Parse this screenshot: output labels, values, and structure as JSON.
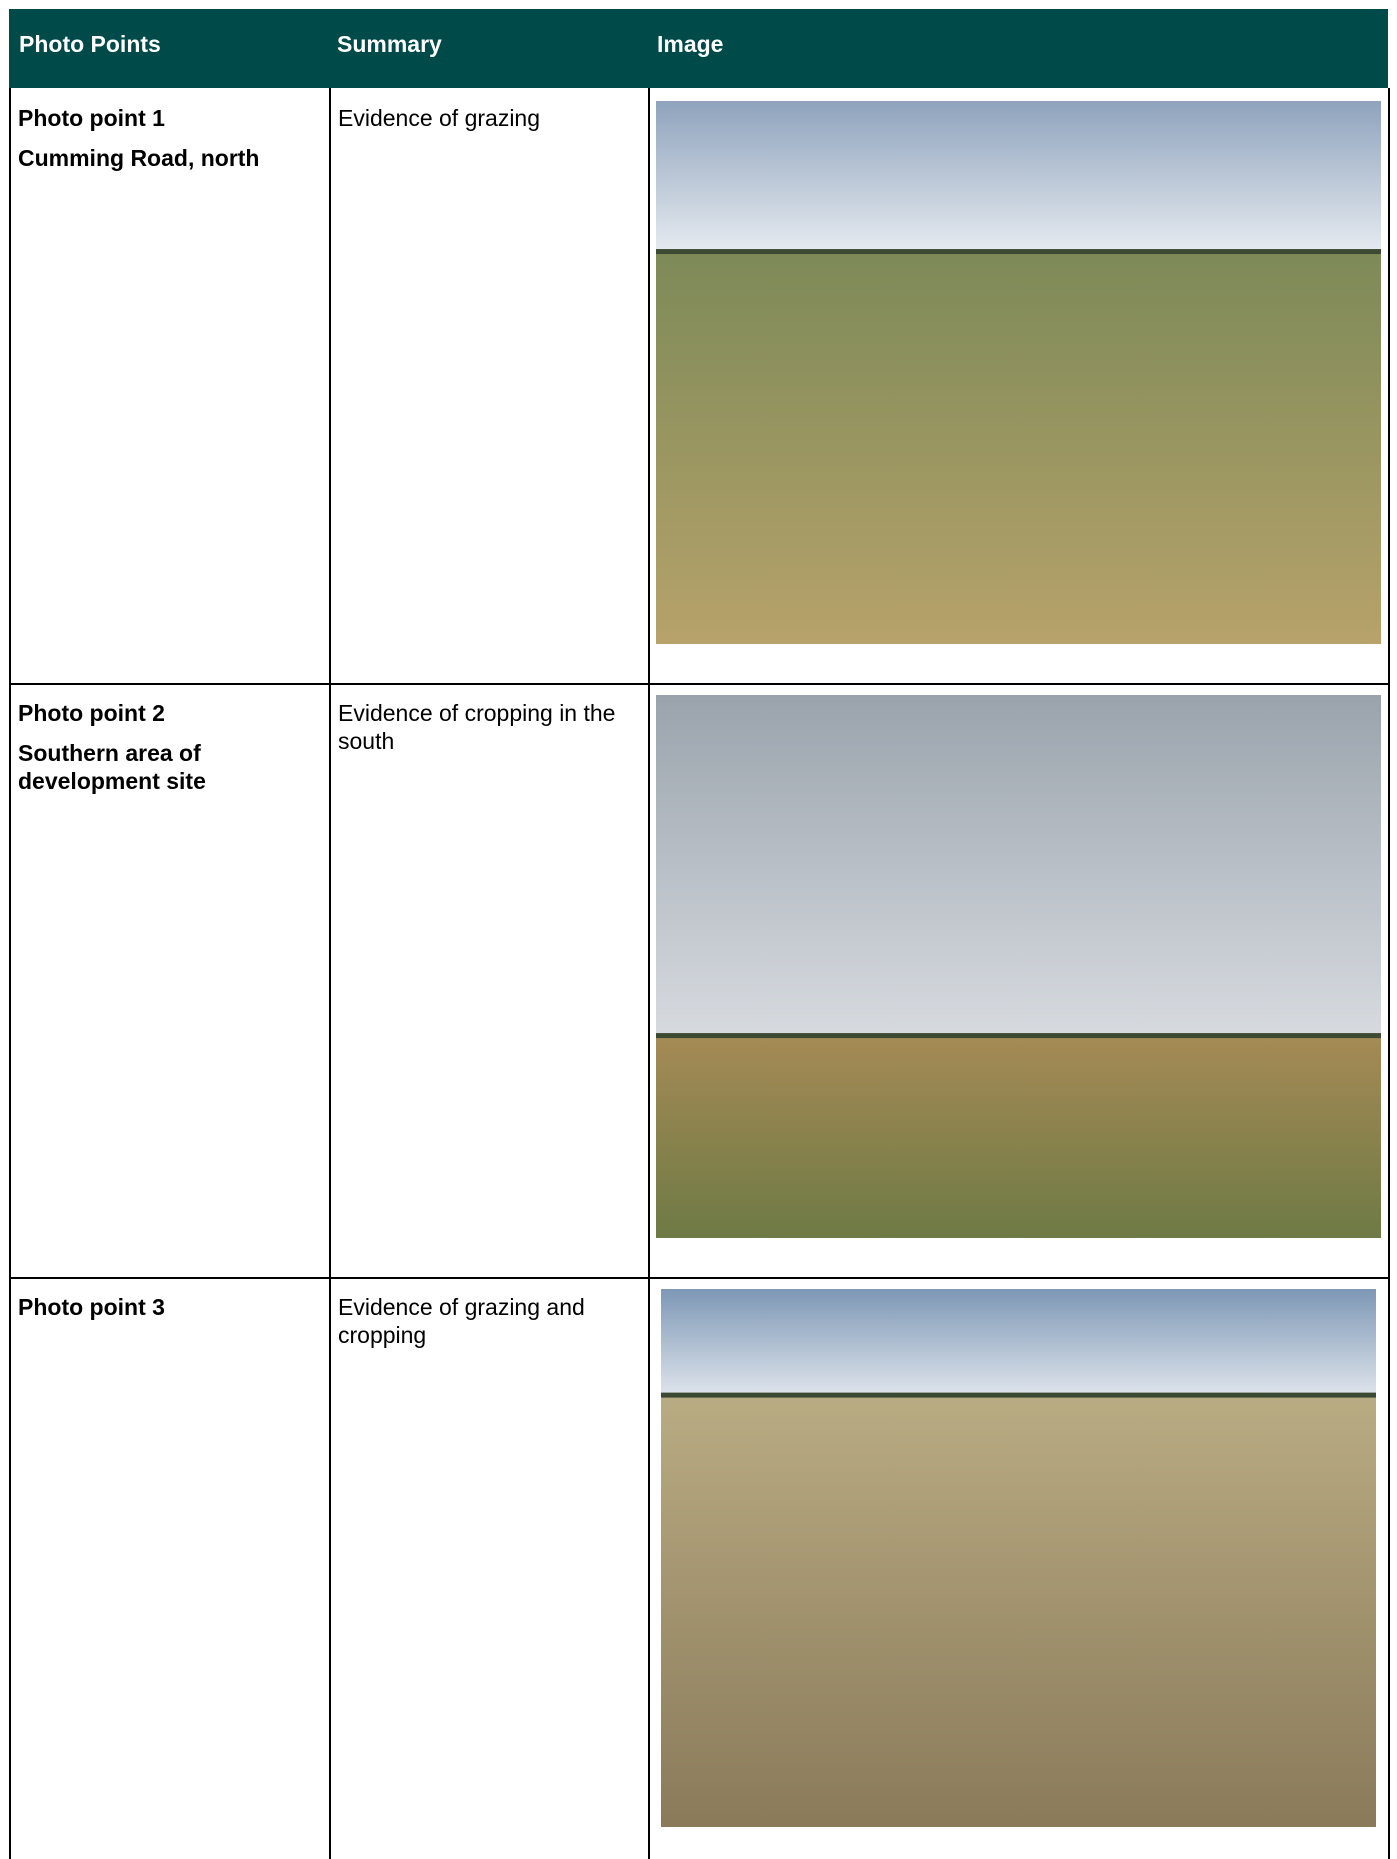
{
  "header": {
    "columns": [
      "Photo Points",
      "Summary",
      "Image"
    ]
  },
  "rows": [
    {
      "point": "Photo point 1",
      "location": "Cumming Road, north",
      "summary": "Evidence of grazing"
    },
    {
      "point": "Photo point 2",
      "location": "Southern area of development site",
      "summary": "Evidence of cropping in the south"
    },
    {
      "point": "Photo point 3",
      "summary": "Evidence of grazing and cropping"
    }
  ]
}
